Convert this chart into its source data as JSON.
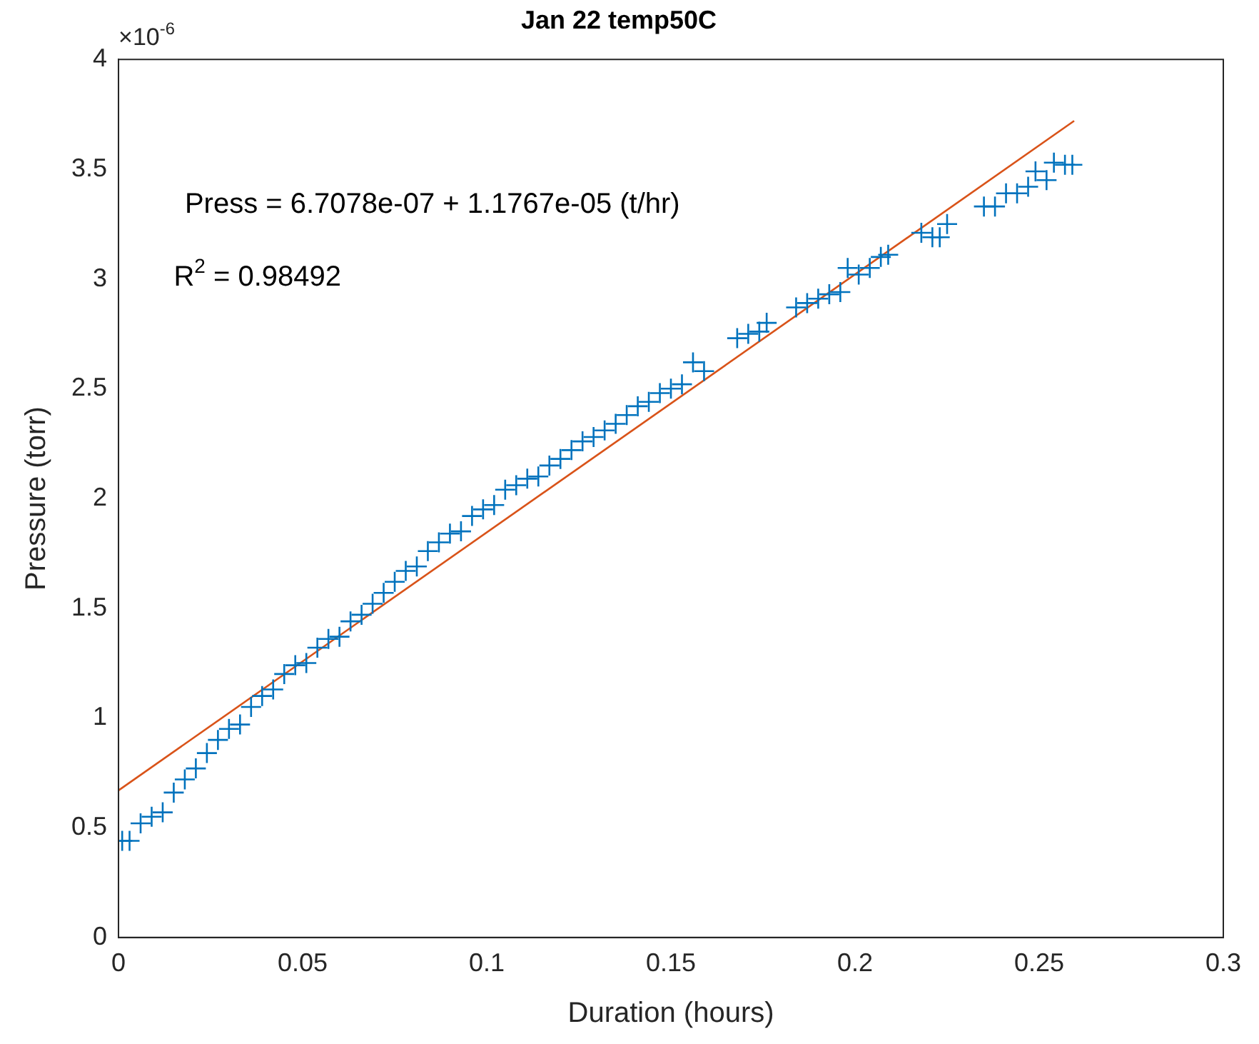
{
  "chart_data": {
    "type": "scatter",
    "title": "Jan 22 temp50C",
    "xlabel": "Duration (hours)",
    "ylabel": "Pressure (torr)",
    "annotations": [
      "×10$^{-6}$",
      "Press = 6.7078e-07 + 1.1767e-05 (t/hr)",
      "R$^{2}$ = 0.98492"
    ],
    "xlim": [
      0,
      0.3
    ],
    "xticks": [
      0,
      0.05,
      0.1,
      0.15,
      0.2,
      0.25,
      0.3
    ],
    "ylim": [
      0,
      4
    ],
    "yticks": [
      0,
      0.5,
      1,
      1.5,
      2,
      2.5,
      3,
      3.5,
      4
    ],
    "grid": false,
    "legend": false,
    "series": [
      {
        "type": "scatter",
        "marker": "cross",
        "color": "#0072bd",
        "x": [
          0.001,
          0.003,
          0.006,
          0.009,
          0.012,
          0.015,
          0.018,
          0.021,
          0.024,
          0.027,
          0.03,
          0.033,
          0.036,
          0.039,
          0.042,
          0.045,
          0.048,
          0.051,
          0.054,
          0.057,
          0.06,
          0.063,
          0.066,
          0.069,
          0.072,
          0.075,
          0.078,
          0.081,
          0.084,
          0.087,
          0.09,
          0.093,
          0.096,
          0.099,
          0.102,
          0.105,
          0.108,
          0.111,
          0.114,
          0.117,
          0.12,
          0.123,
          0.126,
          0.129,
          0.132,
          0.135,
          0.138,
          0.141,
          0.144,
          0.147,
          0.15,
          0.153,
          0.156,
          0.159,
          0.168,
          0.171,
          0.174,
          0.176,
          0.184,
          0.187,
          0.19,
          0.193,
          0.196,
          0.198,
          0.201,
          0.204,
          0.207,
          0.209,
          0.218,
          0.221,
          0.223,
          0.225,
          0.235,
          0.238,
          0.241,
          0.244,
          0.247,
          0.249,
          0.252,
          0.254,
          0.257,
          0.259
        ],
        "values": [
          0.44,
          0.44,
          0.52,
          0.55,
          0.57,
          0.66,
          0.72,
          0.77,
          0.84,
          0.9,
          0.95,
          0.97,
          1.05,
          1.1,
          1.13,
          1.2,
          1.24,
          1.25,
          1.32,
          1.36,
          1.37,
          1.44,
          1.47,
          1.52,
          1.57,
          1.62,
          1.67,
          1.69,
          1.76,
          1.8,
          1.84,
          1.85,
          1.92,
          1.95,
          1.97,
          2.04,
          2.06,
          2.09,
          2.1,
          2.15,
          2.18,
          2.22,
          2.26,
          2.28,
          2.31,
          2.34,
          2.38,
          2.42,
          2.44,
          2.48,
          2.5,
          2.52,
          2.62,
          2.58,
          2.73,
          2.75,
          2.76,
          2.8,
          2.87,
          2.89,
          2.91,
          2.93,
          2.94,
          3.05,
          3.02,
          3.05,
          3.1,
          3.11,
          3.21,
          3.19,
          3.19,
          3.25,
          3.33,
          3.33,
          3.39,
          3.39,
          3.42,
          3.49,
          3.45,
          3.53,
          3.52,
          3.52
        ]
      },
      {
        "type": "line",
        "marker": "none",
        "color": "#d95319",
        "x": [
          0,
          0.2595
        ],
        "values": [
          0.67,
          3.72
        ]
      }
    ]
  }
}
